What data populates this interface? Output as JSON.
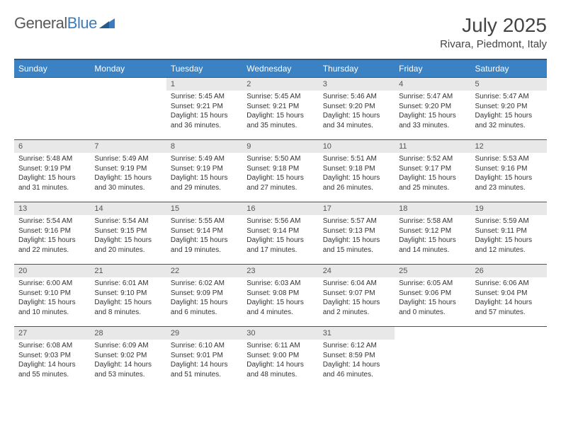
{
  "brand": {
    "part1": "General",
    "part2": "Blue"
  },
  "title": "July 2025",
  "location": "Rivara, Piedmont, Italy",
  "colors": {
    "header_bg": "#3b82c4",
    "header_border": "#2a5a8a",
    "daynum_bg": "#e8e8e8",
    "text": "#333333",
    "brand_gray": "#5a5a5a",
    "brand_blue": "#3b7bbf"
  },
  "weekdays": [
    "Sunday",
    "Monday",
    "Tuesday",
    "Wednesday",
    "Thursday",
    "Friday",
    "Saturday"
  ],
  "start_day_index": 2,
  "days": [
    {
      "n": "1",
      "sunrise": "5:45 AM",
      "sunset": "9:21 PM",
      "daylight": "15 hours and 36 minutes."
    },
    {
      "n": "2",
      "sunrise": "5:45 AM",
      "sunset": "9:21 PM",
      "daylight": "15 hours and 35 minutes."
    },
    {
      "n": "3",
      "sunrise": "5:46 AM",
      "sunset": "9:20 PM",
      "daylight": "15 hours and 34 minutes."
    },
    {
      "n": "4",
      "sunrise": "5:47 AM",
      "sunset": "9:20 PM",
      "daylight": "15 hours and 33 minutes."
    },
    {
      "n": "5",
      "sunrise": "5:47 AM",
      "sunset": "9:20 PM",
      "daylight": "15 hours and 32 minutes."
    },
    {
      "n": "6",
      "sunrise": "5:48 AM",
      "sunset": "9:19 PM",
      "daylight": "15 hours and 31 minutes."
    },
    {
      "n": "7",
      "sunrise": "5:49 AM",
      "sunset": "9:19 PM",
      "daylight": "15 hours and 30 minutes."
    },
    {
      "n": "8",
      "sunrise": "5:49 AM",
      "sunset": "9:19 PM",
      "daylight": "15 hours and 29 minutes."
    },
    {
      "n": "9",
      "sunrise": "5:50 AM",
      "sunset": "9:18 PM",
      "daylight": "15 hours and 27 minutes."
    },
    {
      "n": "10",
      "sunrise": "5:51 AM",
      "sunset": "9:18 PM",
      "daylight": "15 hours and 26 minutes."
    },
    {
      "n": "11",
      "sunrise": "5:52 AM",
      "sunset": "9:17 PM",
      "daylight": "15 hours and 25 minutes."
    },
    {
      "n": "12",
      "sunrise": "5:53 AM",
      "sunset": "9:16 PM",
      "daylight": "15 hours and 23 minutes."
    },
    {
      "n": "13",
      "sunrise": "5:54 AM",
      "sunset": "9:16 PM",
      "daylight": "15 hours and 22 minutes."
    },
    {
      "n": "14",
      "sunrise": "5:54 AM",
      "sunset": "9:15 PM",
      "daylight": "15 hours and 20 minutes."
    },
    {
      "n": "15",
      "sunrise": "5:55 AM",
      "sunset": "9:14 PM",
      "daylight": "15 hours and 19 minutes."
    },
    {
      "n": "16",
      "sunrise": "5:56 AM",
      "sunset": "9:14 PM",
      "daylight": "15 hours and 17 minutes."
    },
    {
      "n": "17",
      "sunrise": "5:57 AM",
      "sunset": "9:13 PM",
      "daylight": "15 hours and 15 minutes."
    },
    {
      "n": "18",
      "sunrise": "5:58 AM",
      "sunset": "9:12 PM",
      "daylight": "15 hours and 14 minutes."
    },
    {
      "n": "19",
      "sunrise": "5:59 AM",
      "sunset": "9:11 PM",
      "daylight": "15 hours and 12 minutes."
    },
    {
      "n": "20",
      "sunrise": "6:00 AM",
      "sunset": "9:10 PM",
      "daylight": "15 hours and 10 minutes."
    },
    {
      "n": "21",
      "sunrise": "6:01 AM",
      "sunset": "9:10 PM",
      "daylight": "15 hours and 8 minutes."
    },
    {
      "n": "22",
      "sunrise": "6:02 AM",
      "sunset": "9:09 PM",
      "daylight": "15 hours and 6 minutes."
    },
    {
      "n": "23",
      "sunrise": "6:03 AM",
      "sunset": "9:08 PM",
      "daylight": "15 hours and 4 minutes."
    },
    {
      "n": "24",
      "sunrise": "6:04 AM",
      "sunset": "9:07 PM",
      "daylight": "15 hours and 2 minutes."
    },
    {
      "n": "25",
      "sunrise": "6:05 AM",
      "sunset": "9:06 PM",
      "daylight": "15 hours and 0 minutes."
    },
    {
      "n": "26",
      "sunrise": "6:06 AM",
      "sunset": "9:04 PM",
      "daylight": "14 hours and 57 minutes."
    },
    {
      "n": "27",
      "sunrise": "6:08 AM",
      "sunset": "9:03 PM",
      "daylight": "14 hours and 55 minutes."
    },
    {
      "n": "28",
      "sunrise": "6:09 AM",
      "sunset": "9:02 PM",
      "daylight": "14 hours and 53 minutes."
    },
    {
      "n": "29",
      "sunrise": "6:10 AM",
      "sunset": "9:01 PM",
      "daylight": "14 hours and 51 minutes."
    },
    {
      "n": "30",
      "sunrise": "6:11 AM",
      "sunset": "9:00 PM",
      "daylight": "14 hours and 48 minutes."
    },
    {
      "n": "31",
      "sunrise": "6:12 AM",
      "sunset": "8:59 PM",
      "daylight": "14 hours and 46 minutes."
    }
  ],
  "labels": {
    "sunrise": "Sunrise:",
    "sunset": "Sunset:",
    "daylight": "Daylight:"
  }
}
